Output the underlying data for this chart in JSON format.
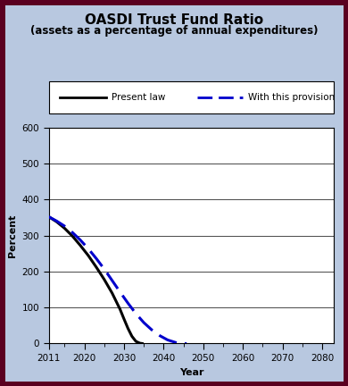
{
  "title_line1": "OASDI Trust Fund Ratio",
  "title_line2": "(assets as a percentage of annual expenditures)",
  "xlabel": "Year",
  "ylabel": "Percent",
  "ylim": [
    0,
    600
  ],
  "xlim": [
    2011,
    2083
  ],
  "yticks": [
    0,
    100,
    200,
    300,
    400,
    500,
    600
  ],
  "xticks": [
    2011,
    2020,
    2030,
    2040,
    2050,
    2060,
    2070,
    2080
  ],
  "background_color": "#b8c8e0",
  "plot_bg_color": "#ffffff",
  "border_color": "#5a0020",
  "present_law": {
    "x": [
      2011,
      2013,
      2015,
      2017,
      2019,
      2021,
      2023,
      2025,
      2027,
      2029,
      2030,
      2031,
      2032,
      2033,
      2034,
      2034.6
    ],
    "y": [
      352,
      338,
      320,
      298,
      272,
      244,
      212,
      178,
      140,
      95,
      68,
      42,
      20,
      6,
      1,
      0
    ],
    "color": "#000000",
    "linewidth": 2.2,
    "label": "Present law"
  },
  "provision": {
    "x": [
      2011,
      2013,
      2015,
      2017,
      2019,
      2021,
      2023,
      2025,
      2027,
      2029,
      2031,
      2033,
      2035,
      2037,
      2039,
      2041,
      2043,
      2044,
      2045,
      2045.8
    ],
    "y": [
      352,
      340,
      326,
      308,
      287,
      263,
      236,
      207,
      175,
      143,
      112,
      83,
      58,
      38,
      22,
      10,
      3,
      1,
      0.2,
      0
    ],
    "color": "#0000cc",
    "linewidth": 2.2,
    "label": "With this provision"
  },
  "legend_label_present": "Present law",
  "legend_label_provision": "With this provision",
  "title_fontsize": 11,
  "subtitle_fontsize": 8.5,
  "axis_label_fontsize": 8,
  "tick_fontsize": 7.5
}
